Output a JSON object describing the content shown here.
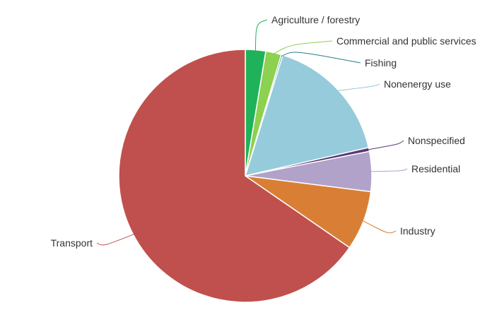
{
  "chart_data": {
    "type": "pie",
    "slices": [
      {
        "label": "Agriculture / forestry",
        "value": 2.6,
        "color": "#1fb25a"
      },
      {
        "label": "Commercial and public services",
        "value": 2.0,
        "color": "#8cd14f"
      },
      {
        "label": "Fishing",
        "value": 0.2,
        "color": "#2b7c90"
      },
      {
        "label": "Nonenergy use",
        "value": 16.6,
        "color": "#96cbdc"
      },
      {
        "label": "Nonspecified",
        "value": 0.5,
        "color": "#5a3a74"
      },
      {
        "label": "Residential",
        "value": 5.1,
        "color": "#b1a2c9"
      },
      {
        "label": "Industry",
        "value": 7.6,
        "color": "#d97f35"
      },
      {
        "label": "Transport",
        "value": 65.4,
        "color": "#c0504d"
      }
    ]
  }
}
